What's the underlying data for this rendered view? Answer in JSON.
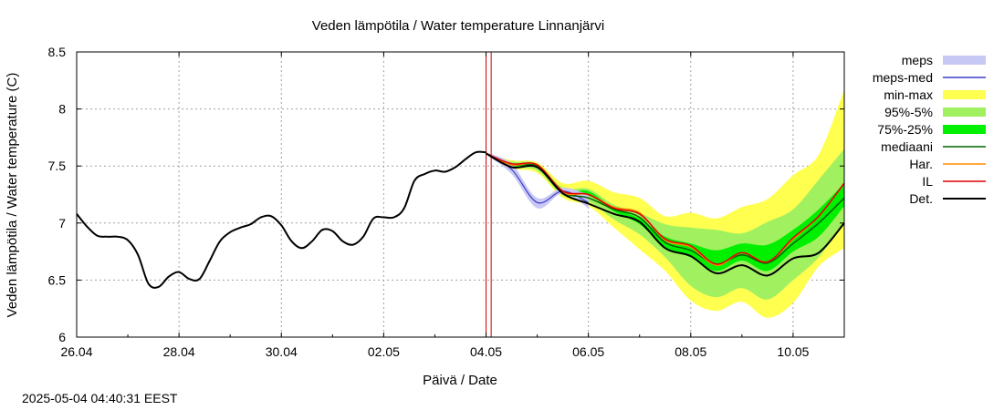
{
  "chart_data": {
    "type": "area",
    "title": "Veden lämpötila / Water temperature Linnanjärvi",
    "xlabel": "Päivä / Date",
    "ylabel": "Veden lämpötila / Water temperature (C)",
    "ylim": [
      6,
      8.5
    ],
    "xlim": [
      0,
      15
    ],
    "x_unit": "days since 26.04 00:00",
    "yticks": [
      "6",
      "6.5",
      "7",
      "7.5",
      "8",
      "8.5"
    ],
    "xticks": [
      "26.04",
      "28.04",
      "30.04",
      "02.05",
      "04.05",
      "06.05",
      "08.05",
      "10.05"
    ],
    "grid": true,
    "legend_position": "right",
    "forecast_start_x": 8.1,
    "observed_end_marker_x": 8.0,
    "colors": {
      "meps": "#c8c8f4",
      "meps_med": "#3c3cc8",
      "min_max": "#ffff50",
      "p95_5": "#a0f060",
      "p75_25": "#00f000",
      "mediaani": "#006400",
      "har": "#ff8c00",
      "il": "#e00000",
      "det": "#000000",
      "vline": "#d00000"
    },
    "legend": [
      {
        "key": "meps",
        "label": "meps",
        "style": "box"
      },
      {
        "key": "meps_med",
        "label": "meps-med",
        "style": "line"
      },
      {
        "key": "min_max",
        "label": "min-max",
        "style": "box"
      },
      {
        "key": "p95_5",
        "label": "95%-5%",
        "style": "box"
      },
      {
        "key": "p75_25",
        "label": "75%-25%",
        "style": "box"
      },
      {
        "key": "mediaani",
        "label": "mediaani",
        "style": "line"
      },
      {
        "key": "har",
        "label": "Har.",
        "style": "line"
      },
      {
        "key": "il",
        "label": "IL",
        "style": "line"
      },
      {
        "key": "det",
        "label": "Det.",
        "style": "line"
      }
    ],
    "observed": {
      "x": [
        0,
        0.2,
        0.4,
        0.6,
        0.8,
        1.0,
        1.2,
        1.4,
        1.6,
        1.8,
        2.0,
        2.2,
        2.4,
        2.6,
        2.8,
        3.0,
        3.2,
        3.4,
        3.6,
        3.8,
        4.0,
        4.2,
        4.4,
        4.6,
        4.8,
        5.0,
        5.2,
        5.4,
        5.6,
        5.8,
        6.0,
        6.2,
        6.4,
        6.6,
        6.8,
        7.0,
        7.2,
        7.4,
        7.6,
        7.8,
        8.0
      ],
      "y": [
        7.08,
        6.97,
        6.89,
        6.88,
        6.88,
        6.85,
        6.72,
        6.47,
        6.44,
        6.53,
        6.57,
        6.51,
        6.51,
        6.67,
        6.84,
        6.92,
        6.96,
        6.99,
        7.05,
        7.06,
        6.98,
        6.84,
        6.78,
        6.84,
        6.94,
        6.93,
        6.84,
        6.81,
        6.88,
        7.04,
        7.05,
        7.05,
        7.13,
        7.37,
        7.43,
        7.46,
        7.45,
        7.49,
        7.56,
        7.62,
        7.62
      ]
    },
    "forecast": {
      "x": [
        8.0,
        8.5,
        9.0,
        9.5,
        10.0,
        10.5,
        11.0,
        11.5,
        12.0,
        12.5,
        13.0,
        13.5,
        14.0,
        14.5,
        15.0
      ],
      "min": [
        7.6,
        7.48,
        7.44,
        7.22,
        7.15,
        6.96,
        6.77,
        6.58,
        6.32,
        6.23,
        6.31,
        6.17,
        6.3,
        6.62,
        6.78
      ],
      "max": [
        7.62,
        7.55,
        7.53,
        7.35,
        7.37,
        7.27,
        7.22,
        7.06,
        7.09,
        7.04,
        7.14,
        7.21,
        7.42,
        7.6,
        8.17
      ],
      "p5": [
        7.61,
        7.49,
        7.46,
        7.24,
        7.19,
        7.03,
        6.9,
        6.7,
        6.45,
        6.35,
        6.43,
        6.33,
        6.5,
        6.7,
        7.0
      ],
      "p95": [
        7.62,
        7.54,
        7.52,
        7.31,
        7.3,
        7.16,
        7.09,
        6.99,
        6.96,
        6.94,
        6.91,
        7.01,
        7.12,
        7.38,
        7.65
      ],
      "p25": [
        7.61,
        7.5,
        7.49,
        7.25,
        7.24,
        7.1,
        6.99,
        6.79,
        6.7,
        6.58,
        6.67,
        6.58,
        6.75,
        6.88,
        7.15
      ],
      "p75": [
        7.62,
        7.52,
        7.51,
        7.29,
        7.28,
        7.13,
        7.04,
        6.88,
        6.82,
        6.76,
        6.82,
        6.81,
        6.94,
        7.12,
        7.35
      ],
      "meps_lo": [
        7.6,
        7.43,
        7.13,
        7.26,
        7.13
      ],
      "meps_hi": [
        7.62,
        7.52,
        7.22,
        7.31,
        7.25
      ],
      "meps_med": [
        7.61,
        7.47,
        7.18,
        7.28,
        7.18
      ],
      "mediaani": [
        7.61,
        7.51,
        7.5,
        7.27,
        7.22,
        7.12,
        7.05,
        6.83,
        6.76,
        6.64,
        6.72,
        6.65,
        6.82,
        7.0,
        7.22
      ],
      "har": [
        7.61,
        7.51,
        7.51,
        7.27,
        7.25,
        7.14,
        7.09,
        6.85,
        6.79,
        6.63,
        6.74,
        6.66,
        6.86,
        7.06,
        7.35
      ],
      "il": [
        7.61,
        7.52,
        7.51,
        7.28,
        7.25,
        7.13,
        7.08,
        6.86,
        6.8,
        6.64,
        6.74,
        6.66,
        6.87,
        7.06,
        7.35
      ],
      "det": [
        7.61,
        7.49,
        7.49,
        7.26,
        7.17,
        7.08,
        7.01,
        6.78,
        6.71,
        6.56,
        6.63,
        6.54,
        6.69,
        6.74,
        7.0
      ]
    }
  },
  "footer": {
    "timestamp": "2025-05-04 04:40:31 EEST"
  }
}
